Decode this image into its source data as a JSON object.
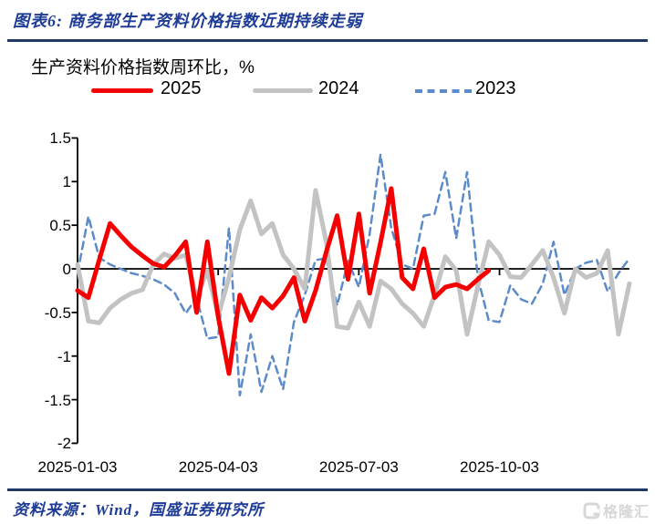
{
  "header": {
    "title": "图表6:  商务部生产资料价格指数近期持续走弱"
  },
  "footer": {
    "source": "资料来源：Wind，国盛证券研究所",
    "watermark": "格隆汇"
  },
  "colors": {
    "navy": "#1e3c96",
    "rule": "#1f3864",
    "watermark": "#d7d7d7",
    "axis": "#000000",
    "series_2025": "#f40000",
    "series_2024": "#c3c3c3",
    "series_2023": "#5b8bc9"
  },
  "chart_data": {
    "type": "line",
    "title": "生产资料价格指数周环比，%",
    "xlabel": "",
    "ylabel": "",
    "x_unit": "weekly observations (week index of year)",
    "x_range": [
      1,
      52
    ],
    "ylim": [
      -2,
      1.5
    ],
    "y_ticks": [
      "1.5",
      "1",
      "0.5",
      "0",
      "-0.5",
      "-1",
      "-1.5",
      "-2"
    ],
    "y_tick_values": [
      1.5,
      1,
      0.5,
      0,
      -0.5,
      -1,
      -1.5,
      -2
    ],
    "x_tick_labels": [
      "2025-01-03",
      "2025-04-03",
      "2025-07-03",
      "2025-10-03"
    ],
    "x_tick_weeks": [
      1,
      14,
      27,
      40
    ],
    "grid": false,
    "legend_position": "top",
    "series": [
      {
        "name": "2025",
        "color": "#f40000",
        "style": "solid",
        "width": 5,
        "start_week": 1,
        "values": [
          -0.25,
          -0.33,
          0.1,
          0.52,
          0.38,
          0.25,
          0.15,
          0.06,
          0.02,
          0.15,
          0.31,
          -0.5,
          0.31,
          -0.55,
          -1.2,
          -0.3,
          -0.59,
          -0.33,
          -0.45,
          -0.31,
          -0.1,
          -0.6,
          -0.25,
          0.2,
          0.61,
          -0.12,
          0.63,
          -0.28,
          0.3,
          0.92,
          -0.1,
          -0.23,
          0.23,
          -0.33,
          -0.21,
          -0.18,
          -0.23,
          -0.12,
          -0.02
        ]
      },
      {
        "name": "2024",
        "color": "#c3c3c3",
        "style": "solid",
        "width": 5,
        "start_week": 1,
        "values": [
          0.05,
          -0.6,
          -0.62,
          -0.45,
          -0.35,
          -0.28,
          -0.24,
          0.05,
          0.17,
          0.12,
          0.16,
          -0.33,
          -0.02,
          -0.54,
          -0.1,
          0.45,
          0.78,
          0.4,
          0.52,
          0.16,
          0.0,
          -0.23,
          0.9,
          0.3,
          -0.66,
          -0.68,
          -0.38,
          -0.66,
          -0.14,
          -0.23,
          -0.4,
          -0.51,
          -0.66,
          -0.3,
          0.14,
          -0.02,
          -0.75,
          -0.2,
          0.31,
          0.16,
          -0.09,
          -0.1,
          0.05,
          0.21,
          -0.1,
          -0.51,
          0.0,
          -0.1,
          -0.05,
          0.21,
          -0.75,
          -0.17
        ]
      },
      {
        "name": "2023",
        "color": "#5b8bc9",
        "style": "dashed",
        "width": 2.5,
        "start_week": 1,
        "values": [
          -0.05,
          0.6,
          0.13,
          0.05,
          0.0,
          -0.05,
          -0.08,
          -0.12,
          -0.18,
          -0.28,
          -0.51,
          -0.33,
          -0.8,
          -0.78,
          0.47,
          -1.45,
          -0.75,
          -1.41,
          -1.0,
          -1.38,
          -0.61,
          -0.3,
          0.1,
          0.12,
          -0.42,
          0.09,
          -0.21,
          0.4,
          1.31,
          0.47,
          0.05,
          0.0,
          0.61,
          0.63,
          1.11,
          0.35,
          1.11,
          -0.1,
          -0.59,
          -0.61,
          -0.19,
          -0.35,
          -0.4,
          -0.17,
          0.31,
          -0.3,
          0.0,
          0.07,
          0.1,
          -0.26,
          -0.05,
          0.12
        ]
      }
    ]
  }
}
